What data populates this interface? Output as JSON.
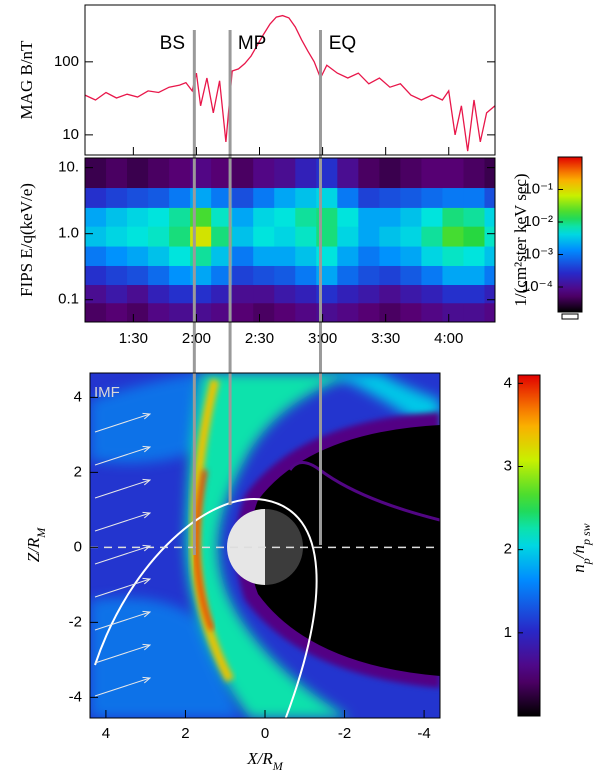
{
  "chart_data": [
    {
      "type": "line",
      "ylabel": "MAG B/nT",
      "log_y": true,
      "xlim": [
        67,
        262
      ],
      "ylim": [
        5.3,
        600
      ],
      "yticks": [
        10,
        100
      ],
      "color": "#e8174a",
      "x": [
        67,
        72,
        77,
        82,
        87,
        92,
        97,
        102,
        107,
        112,
        115,
        118,
        120,
        122,
        125,
        128,
        131,
        134,
        137,
        140,
        143,
        146,
        149,
        152,
        155,
        158,
        161,
        164,
        167,
        170,
        173,
        176,
        179,
        182,
        187,
        192,
        197,
        202,
        207,
        212,
        217,
        222,
        227,
        232,
        237,
        240,
        243,
        246,
        249,
        252,
        255,
        258,
        262
      ],
      "values": [
        35,
        30,
        38,
        32,
        36,
        33,
        40,
        38,
        45,
        48,
        52,
        40,
        70,
        25,
        60,
        20,
        55,
        8,
        75,
        80,
        95,
        120,
        170,
        240,
        330,
        410,
        430,
        400,
        300,
        200,
        140,
        100,
        60,
        90,
        70,
        60,
        70,
        50,
        60,
        45,
        50,
        35,
        30,
        35,
        30,
        40,
        10,
        25,
        6,
        30,
        8,
        20,
        25
      ],
      "annotations": [
        {
          "text": "BS",
          "x": 119
        },
        {
          "text": "MP",
          "x": 136
        },
        {
          "text": "EQ",
          "x": 179
        }
      ]
    },
    {
      "type": "heatmap",
      "ylabel": "FIPS E/q(keV/e)",
      "log_y": true,
      "xlim": [
        67,
        262
      ],
      "ylim": [
        0.046,
        14
      ],
      "xticks": [
        {
          "value": 90,
          "label": "1:30"
        },
        {
          "value": 120,
          "label": "2:00"
        },
        {
          "value": 150,
          "label": "2:30"
        },
        {
          "value": 180,
          "label": "3:00"
        },
        {
          "value": 210,
          "label": "3:30"
        },
        {
          "value": 240,
          "label": "4:00"
        }
      ],
      "yticks": [
        {
          "value": 10,
          "label": "10."
        },
        {
          "value": 1,
          "label": "1.0"
        },
        0.1
      ],
      "x_edges": [
        67,
        77,
        87,
        97,
        107,
        117,
        127,
        137,
        147,
        157,
        167,
        177,
        187,
        197,
        207,
        217,
        227,
        237,
        247,
        257,
        262
      ],
      "y_edges": [
        0.046,
        0.09,
        0.17,
        0.33,
        0.65,
        1.3,
        2.5,
        5,
        14
      ],
      "z": [
        [
          5e-05,
          6e-05,
          5e-05,
          8e-05,
          0.0001,
          0.0001,
          8e-05,
          6e-05,
          5e-05,
          6e-05,
          8e-05,
          0.0001,
          8e-05,
          6e-05,
          5e-05,
          6e-05,
          8e-05,
          0.0001,
          0.0001,
          8e-05
        ],
        [
          0.0001,
          0.00015,
          0.0001,
          0.0002,
          0.0003,
          0.0003,
          0.0002,
          0.0001,
          0.0001,
          0.00015,
          0.0002,
          0.0003,
          0.0002,
          0.00015,
          0.0001,
          0.00015,
          0.0002,
          0.0003,
          0.0003,
          0.0002
        ],
        [
          0.0003,
          0.0004,
          0.0005,
          0.0008,
          0.0015,
          0.002,
          0.001,
          0.0004,
          0.0005,
          0.0006,
          0.001,
          0.002,
          0.0008,
          0.0005,
          0.0004,
          0.0006,
          0.001,
          0.002,
          0.002,
          0.001
        ],
        [
          0.001,
          0.0015,
          0.002,
          0.003,
          0.005,
          0.008,
          0.003,
          0.001,
          0.002,
          0.002,
          0.003,
          0.005,
          0.002,
          0.001,
          0.0015,
          0.002,
          0.004,
          0.006,
          0.005,
          0.003
        ],
        [
          0.003,
          0.004,
          0.005,
          0.006,
          0.01,
          0.08,
          0.01,
          0.003,
          0.005,
          0.004,
          0.006,
          0.01,
          0.004,
          0.002,
          0.003,
          0.004,
          0.008,
          0.02,
          0.015,
          0.006
        ],
        [
          0.002,
          0.003,
          0.004,
          0.005,
          0.008,
          0.02,
          0.006,
          0.002,
          0.004,
          0.005,
          0.008,
          0.01,
          0.005,
          0.002,
          0.002,
          0.003,
          0.005,
          0.01,
          0.008,
          0.004
        ],
        [
          0.0003,
          0.0004,
          0.0005,
          0.0006,
          0.001,
          0.002,
          0.001,
          0.0005,
          0.001,
          0.002,
          0.003,
          0.004,
          0.001,
          0.0004,
          0.0005,
          0.0006,
          0.0008,
          0.001,
          0.001,
          0.0005
        ],
        [
          4e-05,
          5e-05,
          4e-05,
          5e-05,
          6e-05,
          8e-05,
          6e-05,
          5e-05,
          8e-05,
          0.0001,
          0.0002,
          0.0003,
          0.0001,
          5e-05,
          4e-05,
          5e-05,
          6e-05,
          6e-05,
          5e-05,
          4e-05
        ]
      ],
      "colorbar": {
        "label": "1/(cm²ster keV sec)",
        "log": true,
        "lim": [
          1.7e-05,
          1
        ],
        "ticks": [
          {
            "value": 0.1,
            "label": "10⁻¹"
          },
          {
            "value": 0.01,
            "label": "10⁻²"
          },
          {
            "value": 0.001,
            "label": "10⁻³"
          },
          {
            "value": 0.0001,
            "label": "10⁻⁴"
          }
        ]
      }
    },
    {
      "type": "image",
      "annotation": "IMF",
      "xlabel": [
        "X/R",
        "M"
      ],
      "ylabel": [
        "Z/R",
        "M"
      ],
      "xlim": [
        4.4,
        -4.4
      ],
      "ylim": [
        -4.55,
        4.65
      ],
      "xticks": [
        4,
        2,
        0,
        -2,
        -4
      ],
      "yticks": [
        -4,
        -2,
        0,
        2,
        4
      ],
      "colorbar": {
        "label": [
          "n",
          "p",
          "/n",
          "p sw"
        ],
        "log": false,
        "lim": [
          0,
          4.1
        ],
        "ticks": [
          1,
          2,
          3,
          4
        ]
      }
    }
  ]
}
